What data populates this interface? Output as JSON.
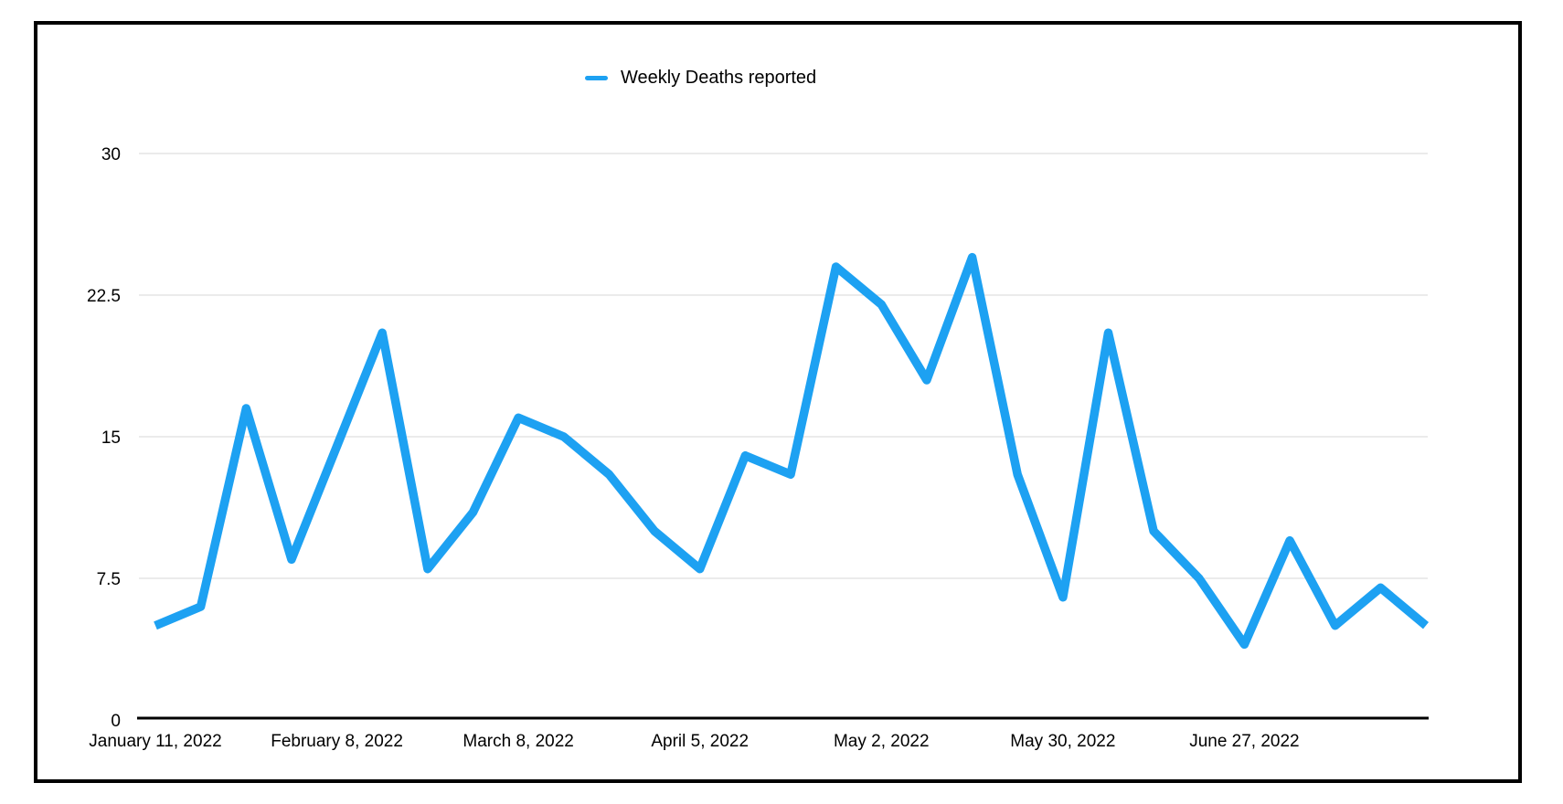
{
  "legend": {
    "label": "Weekly Deaths reported",
    "color": "#1DA1F2"
  },
  "chart_data": {
    "type": "line",
    "title": "",
    "legend_position": "top-center",
    "grid": "horizontal",
    "series": [
      {
        "name": "Weekly Deaths reported",
        "color": "#1DA1F2",
        "values": [
          5,
          6,
          16.5,
          8.5,
          14.5,
          20.5,
          8,
          11,
          16,
          15,
          13,
          10,
          8,
          14,
          13,
          24,
          22,
          18,
          24.5,
          13,
          6.5,
          20.5,
          10,
          7.5,
          4,
          9.5,
          5,
          7,
          5
        ]
      }
    ],
    "x_tick_labels": [
      "January 11, 2022",
      "February 8, 2022",
      "March 8, 2022",
      "April 5, 2022",
      "May 2, 2022",
      "May 30, 2022",
      "June 27, 2022"
    ],
    "x_tick_interval_points": 4,
    "y_ticks": [
      "0",
      "7.5",
      "15",
      "22.5",
      "30"
    ],
    "ylim": [
      0,
      30
    ],
    "axis_color": "#000000",
    "gridline_color": "#D7D7D7",
    "text_color": "#000000"
  }
}
